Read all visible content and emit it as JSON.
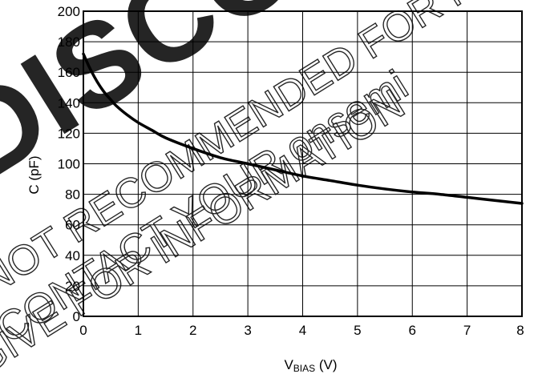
{
  "chart_data": {
    "type": "line",
    "xlabel_main": "V",
    "xlabel_sub": "BIAS",
    "xlabel_unit": " (V)",
    "ylabel": "C (pF)",
    "xlim": [
      0,
      8
    ],
    "ylim": [
      0,
      200
    ],
    "x_ticks": [
      "0",
      "1",
      "2",
      "3",
      "4",
      "5",
      "6",
      "7",
      "8"
    ],
    "y_ticks": [
      "0",
      "20",
      "40",
      "60",
      "80",
      "100",
      "120",
      "140",
      "160",
      "180",
      "200"
    ],
    "grid": true,
    "series": [
      {
        "x": [
          0,
          0.1,
          0.2,
          0.3,
          0.4,
          0.5,
          0.6,
          0.8,
          1.0,
          1.25,
          1.5,
          2.0,
          2.5,
          3.0,
          3.5,
          4.0,
          4.5,
          5.0,
          5.5,
          6.0,
          6.5,
          7.0,
          7.5,
          8.0
        ],
        "y": [
          172,
          164,
          157,
          151,
          146,
          142,
          138,
          132,
          127,
          122,
          117,
          110,
          104,
          100,
          96,
          92,
          89,
          86,
          83.5,
          81.5,
          80,
          78,
          76,
          74
        ],
        "color": "#000000"
      }
    ]
  },
  "watermark": {
    "line1": "DISCONTINUED",
    "line2": "NOT RECOMMENDED FOR NEW",
    "line3": "CONTACT YOUR onsemi",
    "line4": "GIVE FOR INFORMATION"
  }
}
